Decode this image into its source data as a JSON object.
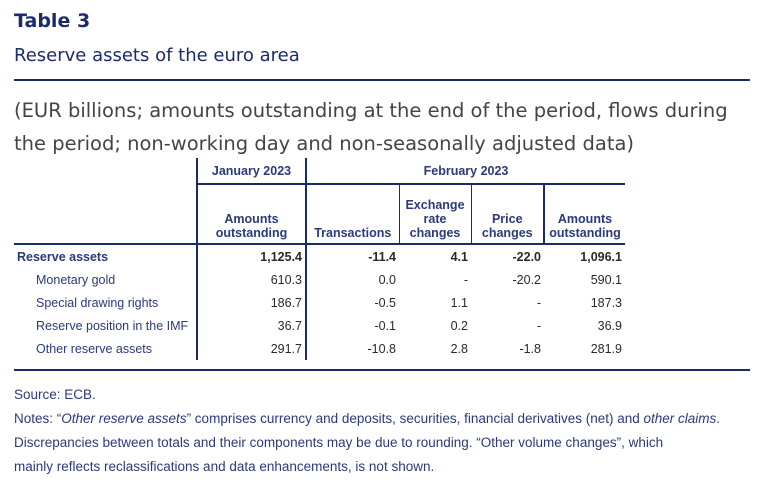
{
  "title": "Table 3",
  "subtitle": "Reserve assets of the euro area",
  "unit_note": "(EUR billions; amounts outstanding at the end of the period, flows during the period; non-working day and non-seasonally adjusted data)",
  "table": {
    "period_headers": [
      "January 2023",
      "February 2023"
    ],
    "columns": [
      "Amounts outstanding",
      "Transactions",
      "Exchange rate changes",
      "Price changes",
      "Amounts outstanding"
    ],
    "rows": [
      {
        "label": "Reserve assets",
        "values": [
          "1,125.4",
          "-11.4",
          "4.1",
          "-22.0",
          "1,096.1"
        ]
      },
      {
        "label": "Monetary gold",
        "values": [
          "610.3",
          "0.0",
          "-",
          "-20.2",
          "590.1"
        ]
      },
      {
        "label": "Special drawing rights",
        "values": [
          "186.7",
          "-0.5",
          "1.1",
          "-",
          "187.3"
        ]
      },
      {
        "label": "Reserve position in the IMF",
        "values": [
          "36.7",
          "-0.1",
          "0.2",
          "-",
          "36.9"
        ]
      },
      {
        "label": "Other reserve assets",
        "values": [
          "291.7",
          "-10.8",
          "2.8",
          "-1.8",
          "281.9"
        ]
      }
    ]
  },
  "footer": {
    "source": "Source: ECB.",
    "notes_1": "Notes: “",
    "notes_em1": "Other reserve assets",
    "notes_2": "” comprises currency and deposits, securities, financial derivatives (net) and ",
    "notes_em2": "other claims",
    "notes_3": ".",
    "line2": "Discrepancies between totals and their components may be due to rounding. “Other volume changes”, which",
    "line3": "mainly reflects reclassifications and data enhancements, is not shown."
  }
}
